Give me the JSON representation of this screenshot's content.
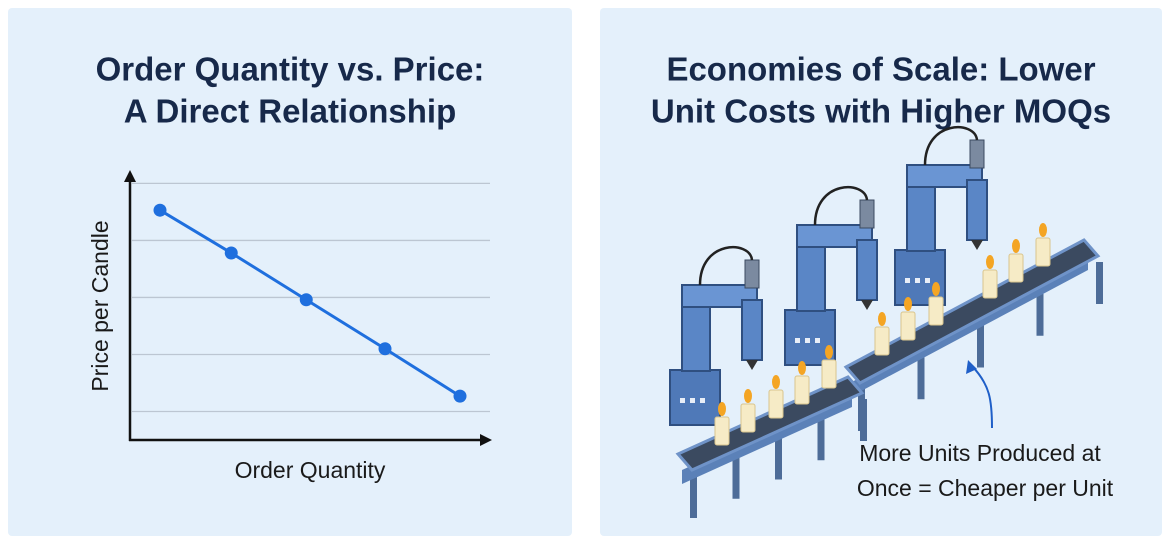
{
  "chart_data": {
    "type": "line",
    "title": [
      "Order Quantity vs. Price:",
      "A Direct Relationship"
    ],
    "x_label": "Order Quantity",
    "y_label": "Price per Candle",
    "x": [
      1,
      1.95,
      2.95,
      4,
      5
    ],
    "values": [
      4.03,
      3.28,
      2.46,
      1.6,
      0.77
    ],
    "color": "#1f6fde",
    "xlim": [
      0.6,
      5.4
    ],
    "ylim": [
      0,
      4.7
    ],
    "yticks": [
      0.5,
      1.5,
      2.5,
      3.5,
      4.5
    ],
    "grid": true
  },
  "illustration": {
    "title": [
      "Economies of Scale: Lower",
      "Unit Costs with Higher MOQs"
    ],
    "caption": [
      "More Units Produced at",
      "Once = Cheaper per Unit"
    ]
  }
}
